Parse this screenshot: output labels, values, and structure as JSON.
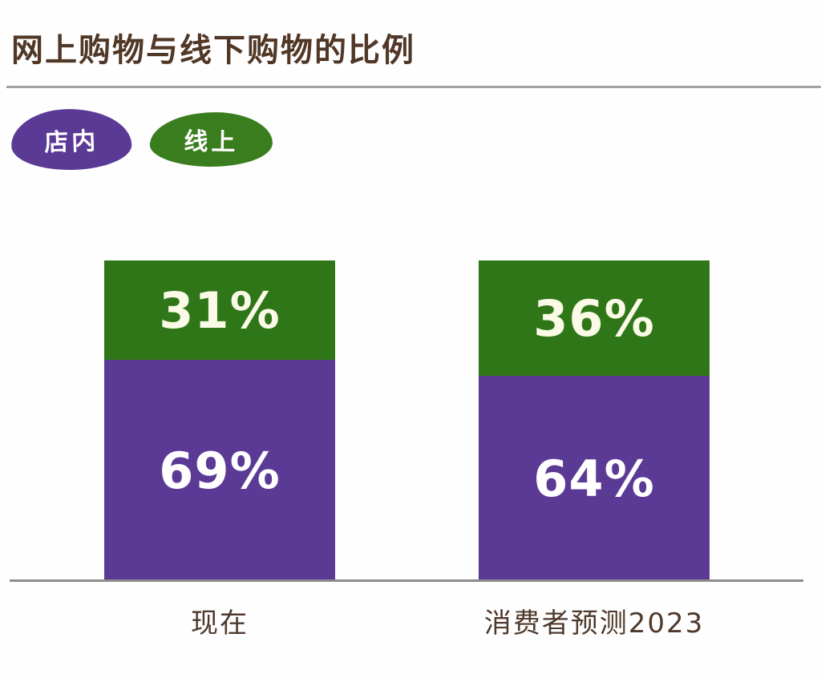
{
  "page": {
    "background_color": "#fefefe"
  },
  "header": {
    "title": "网上购物与线下购物的比例",
    "title_color": "#503726",
    "divider_color": "#a3a3a3"
  },
  "legend": {
    "position": "top-left",
    "items": [
      {
        "label": "店内",
        "swatch_color": "#5b3a96",
        "text_color": "#ffffff",
        "shape": "organic-blob"
      },
      {
        "label": "线上",
        "swatch_color": "#3a7d1f",
        "text_color": "#ffffff",
        "shape": "organic-blob"
      }
    ]
  },
  "chart_data": {
    "type": "bar",
    "stacked": true,
    "title": "网上购物与线下购物的比例",
    "categories": [
      "现在",
      "消费者预测2023"
    ],
    "series": [
      {
        "name": "店内",
        "values": [
          69,
          64
        ],
        "color": "#5b3a96",
        "label_color": "#ffffff"
      },
      {
        "name": "线上",
        "values": [
          31,
          36
        ],
        "color": "#2f7619",
        "label_color": "#fafae6"
      }
    ],
    "value_suffix": "%",
    "ylim": [
      0,
      100
    ],
    "grid": false,
    "y_axis_visible": false,
    "axis_line_color": "#8c8c8c",
    "category_label_color": "#4f392c",
    "legend_position": "top-left"
  }
}
